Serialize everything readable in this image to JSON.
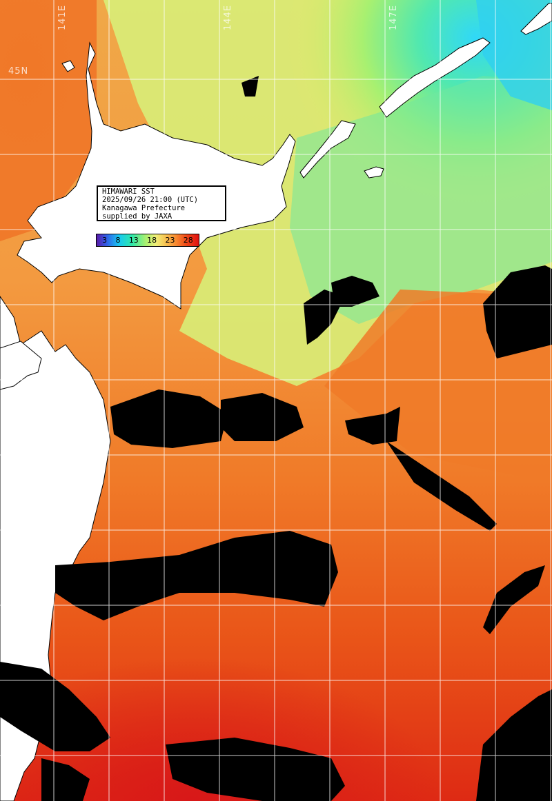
{
  "map": {
    "title": "HIMAWARI SST",
    "datetime": "2025/09/26 21:00 (UTC)",
    "region": "Kanagawa Prefecture",
    "credit": "supplied by JAXA",
    "legend_ticks": [
      "3",
      "8",
      "13",
      "18",
      "23",
      "28"
    ],
    "legend_unit_colors": [
      "#5a1aa8",
      "#2f60e8",
      "#18c8f0",
      "#30e8a8",
      "#a8f070",
      "#f0f078",
      "#f8c050",
      "#f88830",
      "#f04818",
      "#e01010"
    ],
    "lon_labels": [
      "141E",
      "144E",
      "147E"
    ],
    "lat_labels": [
      "45N"
    ],
    "colors": {
      "land": "#ffffff",
      "cloud": "#000000",
      "grid": "#ffffff"
    }
  }
}
